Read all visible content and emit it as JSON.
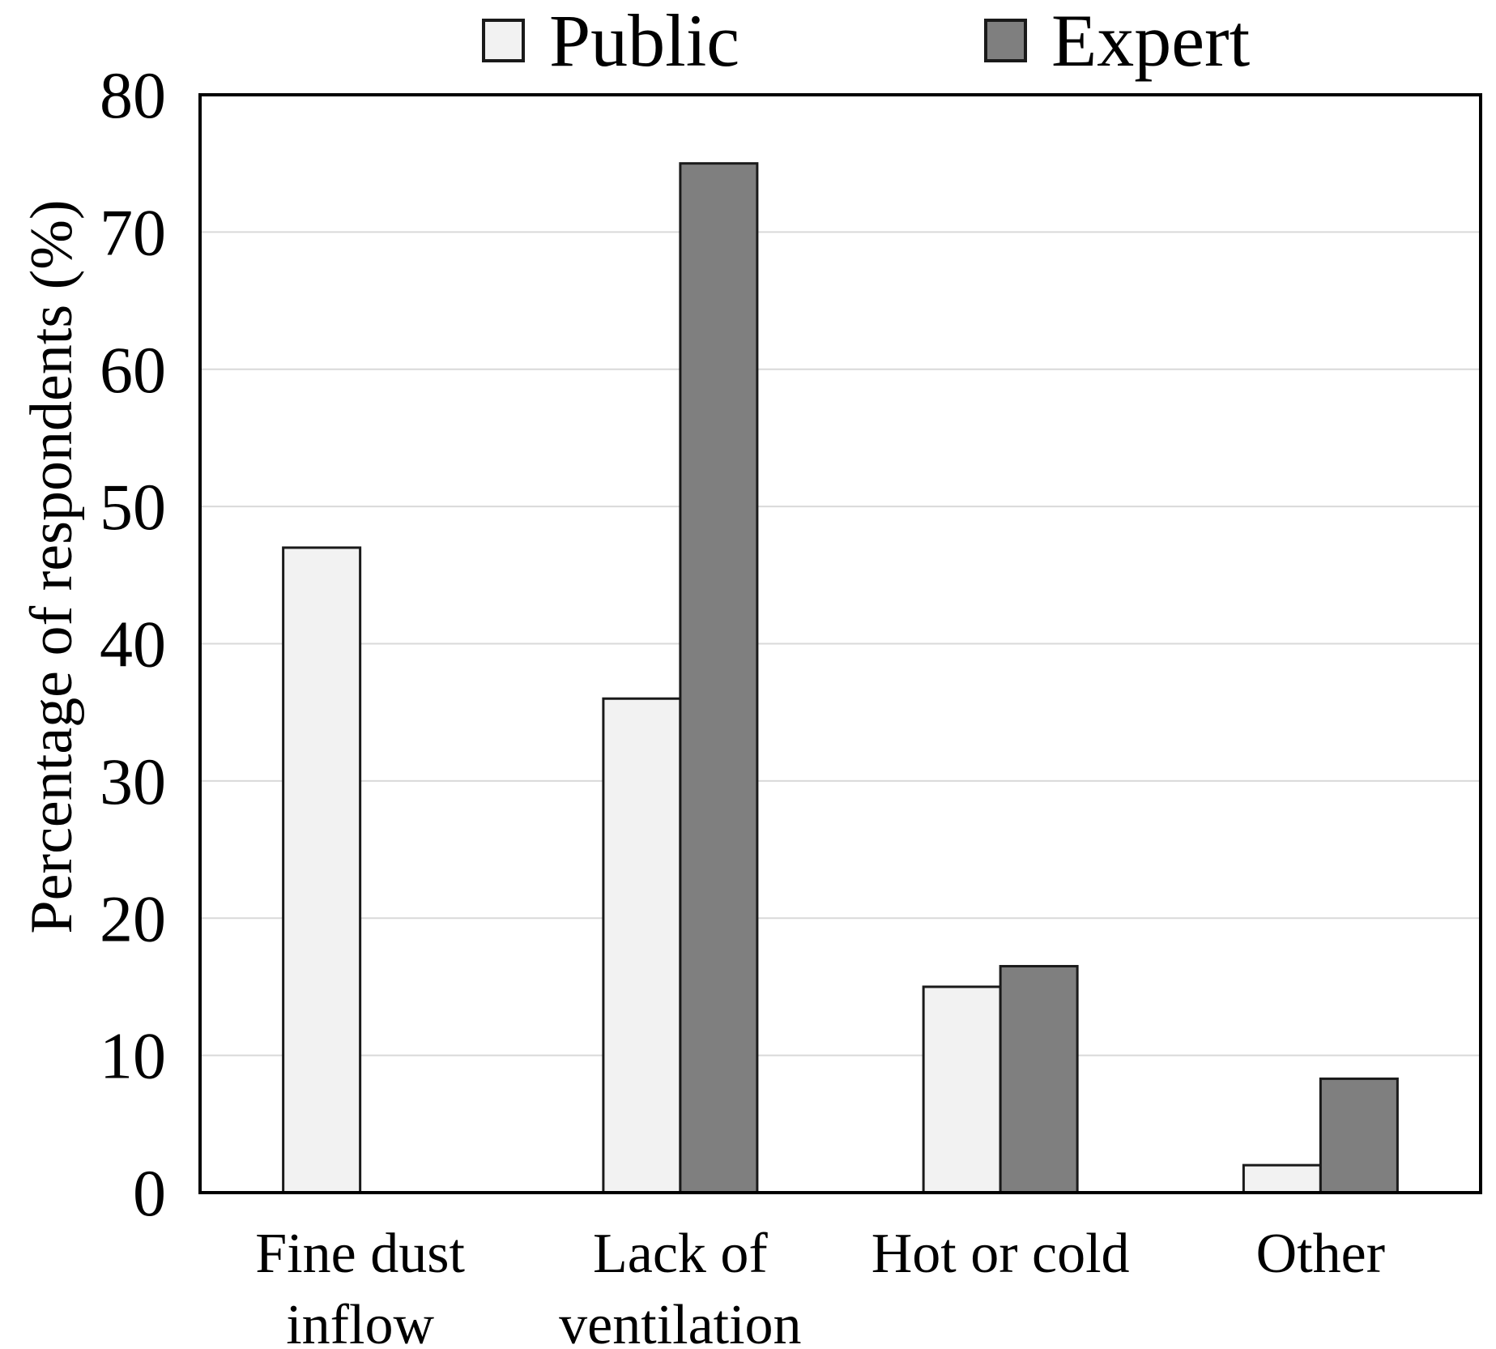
{
  "figure": {
    "background": "#ffffff"
  },
  "chart_data": {
    "type": "bar",
    "title": "",
    "xlabel": "",
    "ylabel": "Percentage of respondents (%)",
    "ylim": [
      0,
      80
    ],
    "ytick_step": 10,
    "yticks": [
      0,
      10,
      20,
      30,
      40,
      50,
      60,
      70,
      80
    ],
    "grid": "horizontal-gridlines-on",
    "legend_position": "top",
    "categories": [
      "Fine dust inflow",
      "Lack of ventilation",
      "Hot or cold",
      "Other"
    ],
    "category_label_lines": [
      [
        "Fine dust",
        "inflow"
      ],
      [
        "Lack of",
        "ventilation"
      ],
      [
        "Hot or cold"
      ],
      [
        "Other"
      ]
    ],
    "series": [
      {
        "name": "Public",
        "values": [
          47,
          36,
          15,
          2
        ],
        "fill": "#f2f2f2",
        "border": "#1a1a1a"
      },
      {
        "name": "Expert",
        "values": [
          0,
          75,
          16.5,
          8.3
        ],
        "fill": "#7f7f7f",
        "border": "#1a1a1a"
      }
    ],
    "colors": {
      "gridline": "#d9d9d9",
      "axis_box": "#000000",
      "text": "#000000"
    }
  }
}
